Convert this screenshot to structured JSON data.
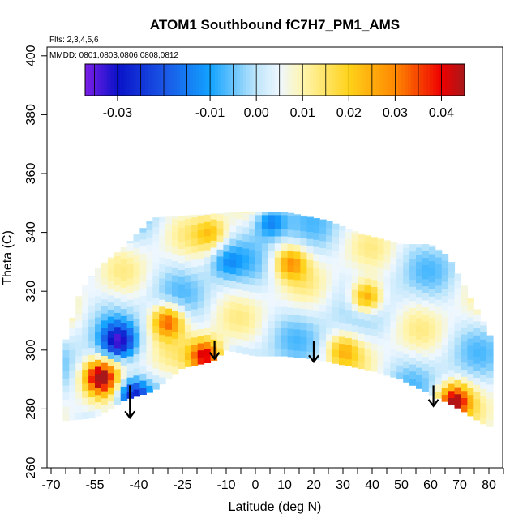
{
  "chart_data": {
    "type": "heatmap",
    "title": "ATOM1 Southbound fC7H7_PM1_AMS",
    "flights_note": "Flts: 2,3,4,5,6",
    "dates_note": "MMDD: 0801,0803,0806,0808,0812",
    "xlabel": "Latitude (deg N)",
    "ylabel": "Theta (C)",
    "xlim": [
      -70,
      85
    ],
    "ylim": [
      260,
      400
    ],
    "x_ticks": [
      -70,
      -55,
      -40,
      -25,
      -10,
      0,
      10,
      20,
      30,
      40,
      50,
      60,
      70,
      80
    ],
    "y_ticks": [
      260,
      280,
      300,
      320,
      340,
      360,
      380,
      400
    ],
    "colorbar": {
      "range": [
        -0.037,
        0.045
      ],
      "labels": [
        -0.03,
        -0.01,
        0.0,
        0.01,
        0.02,
        0.03,
        0.04
      ],
      "label_text": [
        "-0.03",
        "-0.01",
        "0.00",
        "0.01",
        "0.02",
        "0.03",
        "0.04"
      ],
      "stops": [
        {
          "v": -0.037,
          "color": "#7d1fe8"
        },
        {
          "v": -0.03,
          "color": "#0a12c8"
        },
        {
          "v": -0.02,
          "color": "#1a55e6"
        },
        {
          "v": -0.01,
          "color": "#12a2ff"
        },
        {
          "v": 0.0,
          "color": "#bfe6fb"
        },
        {
          "v": 0.005,
          "color": "#eef7ff"
        },
        {
          "v": 0.01,
          "color": "#fff5b0"
        },
        {
          "v": 0.02,
          "color": "#ffd21a"
        },
        {
          "v": 0.03,
          "color": "#ff8800"
        },
        {
          "v": 0.04,
          "color": "#ee0000"
        },
        {
          "v": 0.045,
          "color": "#a8181a"
        }
      ]
    },
    "boundary_top": [
      [
        -66,
        300
      ],
      [
        -60,
        320
      ],
      [
        -54,
        328
      ],
      [
        -45,
        335
      ],
      [
        -35,
        345
      ],
      [
        -20,
        346
      ],
      [
        -5,
        347
      ],
      [
        10,
        347
      ],
      [
        25,
        344
      ],
      [
        35,
        340
      ],
      [
        50,
        336
      ],
      [
        60,
        336
      ],
      [
        66,
        332
      ],
      [
        78,
        310
      ],
      [
        80,
        305
      ]
    ],
    "boundary_bottom": [
      [
        -66,
        276
      ],
      [
        -55,
        277
      ],
      [
        -45,
        283
      ],
      [
        -35,
        286
      ],
      [
        -25,
        294
      ],
      [
        -15,
        296
      ],
      [
        -10,
        300
      ],
      [
        0,
        298
      ],
      [
        10,
        298
      ],
      [
        20,
        297
      ],
      [
        30,
        295
      ],
      [
        40,
        293
      ],
      [
        50,
        290
      ],
      [
        60,
        285
      ],
      [
        70,
        280
      ],
      [
        78,
        275
      ],
      [
        80,
        274
      ]
    ],
    "hotspots": [
      {
        "x": 12,
        "y": 330,
        "v": 0.022
      },
      {
        "x": 38,
        "y": 318,
        "v": 0.03
      },
      {
        "x": -30,
        "y": 310,
        "v": 0.03
      },
      {
        "x": -17,
        "y": 298,
        "v": 0.04
      },
      {
        "x": -53,
        "y": 291,
        "v": 0.04
      },
      {
        "x": -42,
        "y": 285,
        "v": -0.033
      },
      {
        "x": -47,
        "y": 303,
        "v": -0.03
      },
      {
        "x": 30,
        "y": 300,
        "v": 0.015
      },
      {
        "x": 68,
        "y": 283,
        "v": 0.038
      },
      {
        "x": -15,
        "y": 340,
        "v": 0.015
      },
      {
        "x": -10,
        "y": 330,
        "v": -0.01
      },
      {
        "x": 5,
        "y": 344,
        "v": -0.02
      }
    ],
    "arrows": [
      {
        "x": -43,
        "y_start": 288,
        "y_end": 277
      },
      {
        "x": -14,
        "y_start": 303,
        "y_end": 297
      },
      {
        "x": 20,
        "y_start": 303,
        "y_end": 296
      },
      {
        "x": 61,
        "y_start": 288,
        "y_end": 281
      }
    ],
    "grid": false
  }
}
